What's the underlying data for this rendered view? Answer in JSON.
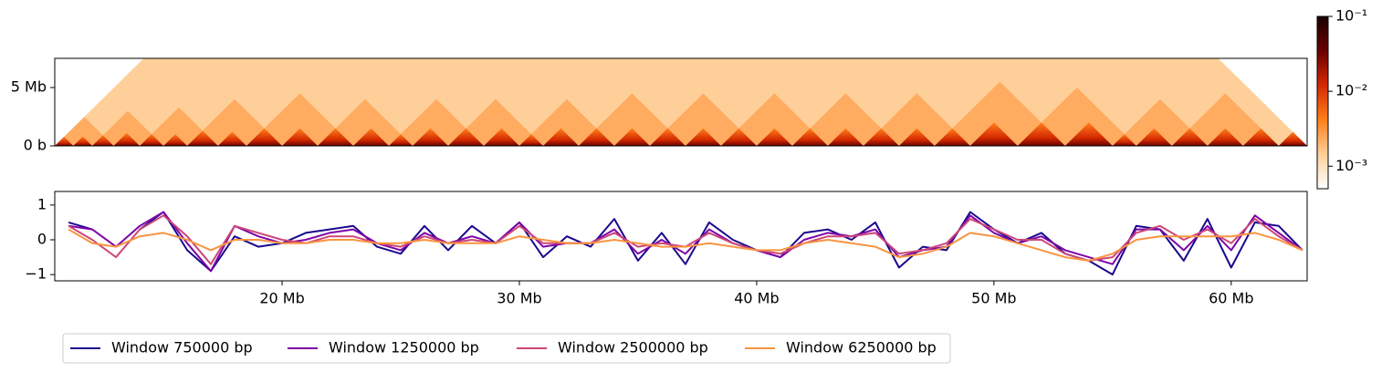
{
  "chart_data": [
    {
      "type": "heatmap",
      "xlim": [
        10420000,
        63200000
      ],
      "ylim": [
        0,
        7500000
      ],
      "yticks": [
        {
          "value": 0,
          "label": "0 b"
        },
        {
          "value": 5000000,
          "label": "5 Mb"
        }
      ],
      "boundaries": [
        10420000,
        11200000,
        12000000,
        12900000,
        14000000,
        15000000,
        16000000,
        17300000,
        18500000,
        20000000,
        21500000,
        23000000,
        24500000,
        25500000,
        27000000,
        28500000,
        30000000,
        31000000,
        32500000,
        34000000,
        35500000,
        37000000,
        38500000,
        40000000,
        41500000,
        43000000,
        44500000,
        46000000,
        47500000,
        49000000,
        51000000,
        53000000,
        55000000,
        56000000,
        57500000,
        59000000,
        60500000,
        62000000,
        63200000
      ],
      "colormap": [
        "#ffffff",
        "#ffcf99",
        "#ff7f1a",
        "#d42a00",
        "#6a0000",
        "#1a0000"
      ],
      "clim": [
        0.0005,
        0.1
      ],
      "log_scale": true,
      "cticks": [
        {
          "value": 0.1,
          "label": "10⁻¹"
        },
        {
          "value": 0.01,
          "label": "10⁻²"
        },
        {
          "value": 0.001,
          "label": "10⁻³"
        }
      ]
    },
    {
      "type": "line",
      "xlim": [
        10420000,
        63200000
      ],
      "ylim": [
        -1.18,
        1.39
      ],
      "yticks": [
        {
          "value": -1,
          "label": "−1"
        },
        0,
        1
      ],
      "xticks": [
        {
          "value": 20000000,
          "label": "20 Mb"
        },
        {
          "value": 30000000,
          "label": "30 Mb"
        },
        {
          "value": 40000000,
          "label": "40 Mb"
        },
        {
          "value": 50000000,
          "label": "50 Mb"
        },
        {
          "value": 60000000,
          "label": "60 Mb"
        }
      ],
      "x": [
        11000000,
        12000000,
        13000000,
        14000000,
        15000000,
        16000000,
        17000000,
        18000000,
        19000000,
        20000000,
        21000000,
        22000000,
        23000000,
        24000000,
        25000000,
        26000000,
        27000000,
        28000000,
        29000000,
        30000000,
        31000000,
        32000000,
        33000000,
        34000000,
        35000000,
        36000000,
        37000000,
        38000000,
        39000000,
        40000000,
        41000000,
        42000000,
        43000000,
        44000000,
        45000000,
        46000000,
        47000000,
        48000000,
        49000000,
        50000000,
        51000000,
        52000000,
        53000000,
        54000000,
        55000000,
        56000000,
        57000000,
        58000000,
        59000000,
        60000000,
        61000000,
        62000000,
        63000000
      ],
      "series": [
        {
          "name": "Window 750000 bp",
          "color": "#1a0a8c",
          "values": [
            0.5,
            0.3,
            null,
            0.3,
            0.8,
            -0.3,
            -0.9,
            0.1,
            -0.2,
            -0.1,
            0.2,
            0.3,
            0.4,
            -0.2,
            -0.4,
            0.4,
            -0.3,
            0.4,
            -0.1,
            0.5,
            -0.5,
            0.1,
            -0.2,
            0.6,
            -0.6,
            0.2,
            -0.7,
            0.5,
            0.0,
            -0.3,
            -0.5,
            0.2,
            0.3,
            0.0,
            0.5,
            -0.8,
            -0.2,
            -0.3,
            0.8,
            0.3,
            -0.1,
            0.2,
            -0.4,
            -0.6,
            -1.0,
            0.4,
            0.3,
            -0.6,
            0.6,
            -0.8,
            0.5,
            0.4,
            -0.3
          ]
        },
        {
          "name": "Window 1250000 bp",
          "color": "#7e03a8",
          "values": [
            0.4,
            0.3,
            -0.2,
            0.4,
            0.8,
            -0.1,
            -0.9,
            0.4,
            0.1,
            -0.1,
            0.0,
            0.2,
            0.3,
            -0.1,
            -0.3,
            0.2,
            -0.1,
            0.1,
            -0.1,
            0.5,
            -0.2,
            -0.1,
            -0.1,
            0.3,
            -0.4,
            0.0,
            -0.4,
            0.3,
            -0.1,
            -0.3,
            -0.5,
            0.0,
            0.2,
            0.1,
            0.3,
            -0.5,
            -0.3,
            -0.2,
            0.7,
            0.2,
            -0.1,
            0.1,
            -0.3,
            -0.5,
            -0.7,
            0.3,
            0.3,
            -0.3,
            0.4,
            -0.3,
            0.7,
            0.2,
            -0.3
          ]
        },
        {
          "name": "Window 2500000 bp",
          "color": "#cc4778",
          "values": [
            0.4,
            0.0,
            -0.5,
            0.3,
            0.7,
            0.1,
            -0.7,
            0.4,
            0.2,
            0.0,
            -0.1,
            0.1,
            0.1,
            -0.1,
            -0.2,
            0.1,
            -0.1,
            0.0,
            -0.1,
            0.4,
            -0.1,
            -0.1,
            -0.1,
            0.2,
            -0.2,
            -0.1,
            -0.2,
            0.2,
            -0.1,
            -0.3,
            -0.4,
            -0.1,
            0.1,
            0.1,
            0.2,
            -0.4,
            -0.3,
            -0.1,
            0.6,
            0.3,
            0.0,
            0.0,
            -0.4,
            -0.6,
            -0.5,
            0.2,
            0.4,
            0.0,
            0.3,
            -0.1,
            0.6,
            0.1,
            -0.3
          ]
        },
        {
          "name": "Window 6250000 bp",
          "color": "#f89540",
          "values": [
            0.3,
            -0.1,
            -0.2,
            0.1,
            0.2,
            0.0,
            -0.3,
            0.0,
            0.0,
            -0.1,
            -0.1,
            0.0,
            0.0,
            -0.1,
            -0.1,
            0.0,
            -0.1,
            -0.1,
            -0.1,
            0.1,
            0.0,
            -0.1,
            -0.1,
            0.0,
            -0.1,
            -0.2,
            -0.2,
            -0.1,
            -0.2,
            -0.3,
            -0.3,
            -0.1,
            0.0,
            -0.1,
            -0.2,
            -0.5,
            -0.4,
            -0.2,
            0.2,
            0.1,
            -0.1,
            -0.3,
            -0.5,
            -0.6,
            -0.4,
            0.0,
            0.1,
            0.1,
            0.1,
            0.1,
            0.2,
            0.0,
            -0.3
          ]
        }
      ]
    }
  ]
}
